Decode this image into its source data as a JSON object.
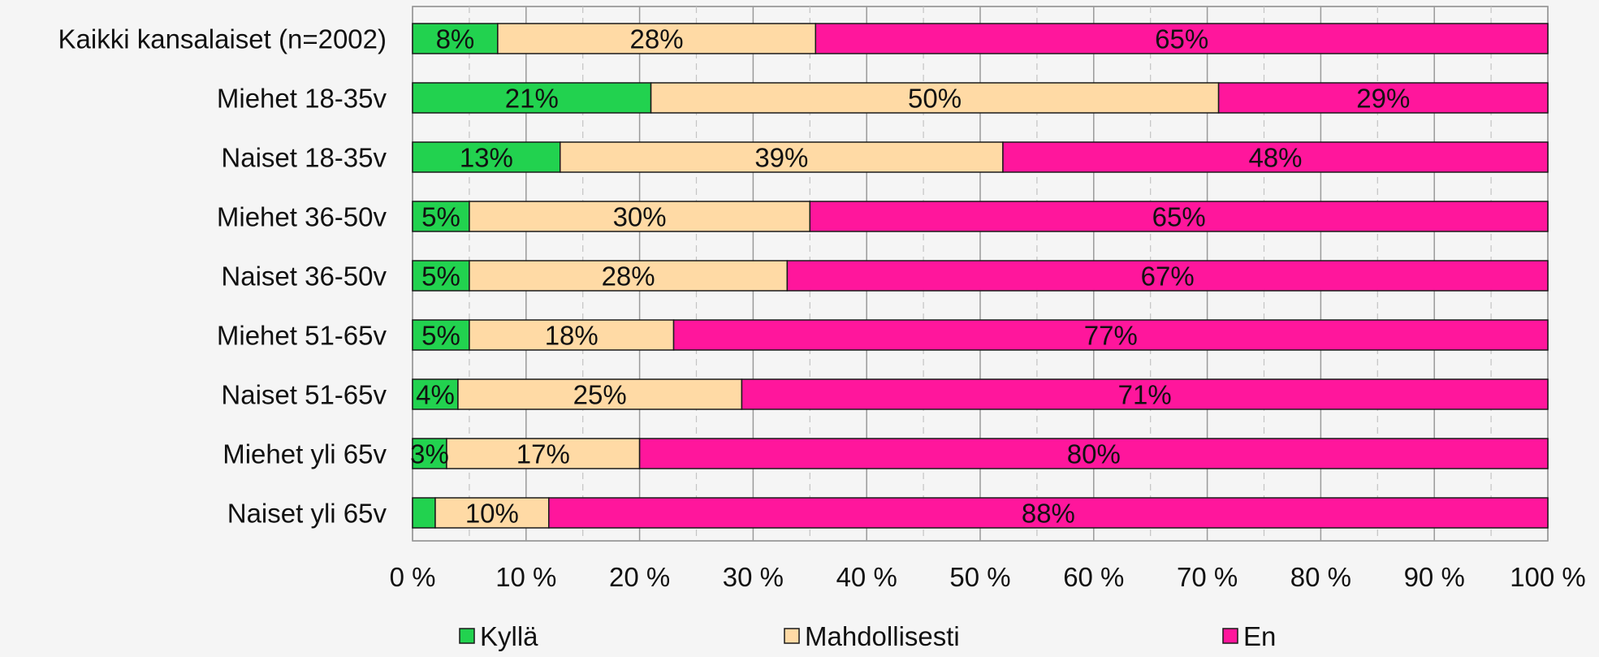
{
  "chart_data": {
    "type": "bar",
    "orientation": "horizontal",
    "stacked": true,
    "percent_stacked": true,
    "categories": [
      "Kaikki kansalaiset (n=2002)",
      "Miehet 18-35v",
      "Naiset 18-35v",
      "Miehet 36-50v",
      "Naiset 36-50v",
      "Miehet 51-65v",
      "Naiset 51-65v",
      "Miehet yli 65v",
      "Naiset yli 65v"
    ],
    "series": [
      {
        "name": "Kyllä",
        "color": "#22d24f",
        "values": [
          7.5,
          21,
          13,
          5,
          5,
          5,
          4,
          3,
          2
        ],
        "labels": [
          "8%",
          "21%",
          "13%",
          "5%",
          "5%",
          "5%",
          "4%",
          "3%",
          ""
        ]
      },
      {
        "name": "Mahdollisesti",
        "color": "#ffdaa5",
        "values": [
          28,
          50,
          39,
          30,
          28,
          18,
          25,
          17,
          10
        ],
        "labels": [
          "28%",
          "50%",
          "39%",
          "30%",
          "28%",
          "18%",
          "25%",
          "17%",
          "10%"
        ]
      },
      {
        "name": "En",
        "color": "#ff169c",
        "values": [
          64.5,
          29,
          48,
          65,
          67,
          77,
          71,
          80,
          88
        ],
        "labels": [
          "65%",
          "29%",
          "48%",
          "65%",
          "67%",
          "77%",
          "71%",
          "80%",
          "88%"
        ]
      }
    ],
    "x_ticks": [
      "0 %",
      "10 %",
      "20 %",
      "30 %",
      "40 %",
      "50 %",
      "60 %",
      "70 %",
      "80 %",
      "90 %",
      "100 %"
    ],
    "xlim": [
      0,
      100
    ],
    "grid": true,
    "legend_position": "bottom"
  }
}
